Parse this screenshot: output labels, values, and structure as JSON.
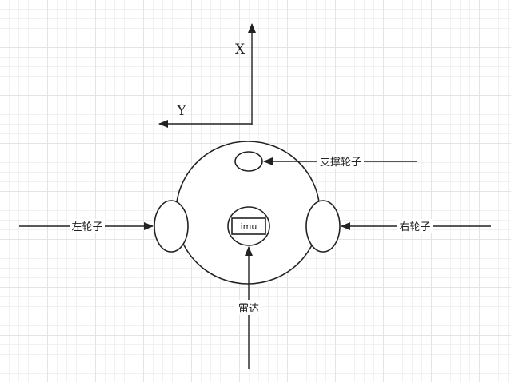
{
  "axes": {
    "x_label": "X",
    "y_label": "Y"
  },
  "labels": {
    "support_wheel": "支撑轮子",
    "left_wheel": "左轮子",
    "right_wheel": "右轮子",
    "imu": "imu",
    "lidar": "雷达"
  },
  "colors": {
    "stroke": "#222222",
    "grid": "#e4e4e4",
    "background": "#ffffff"
  }
}
